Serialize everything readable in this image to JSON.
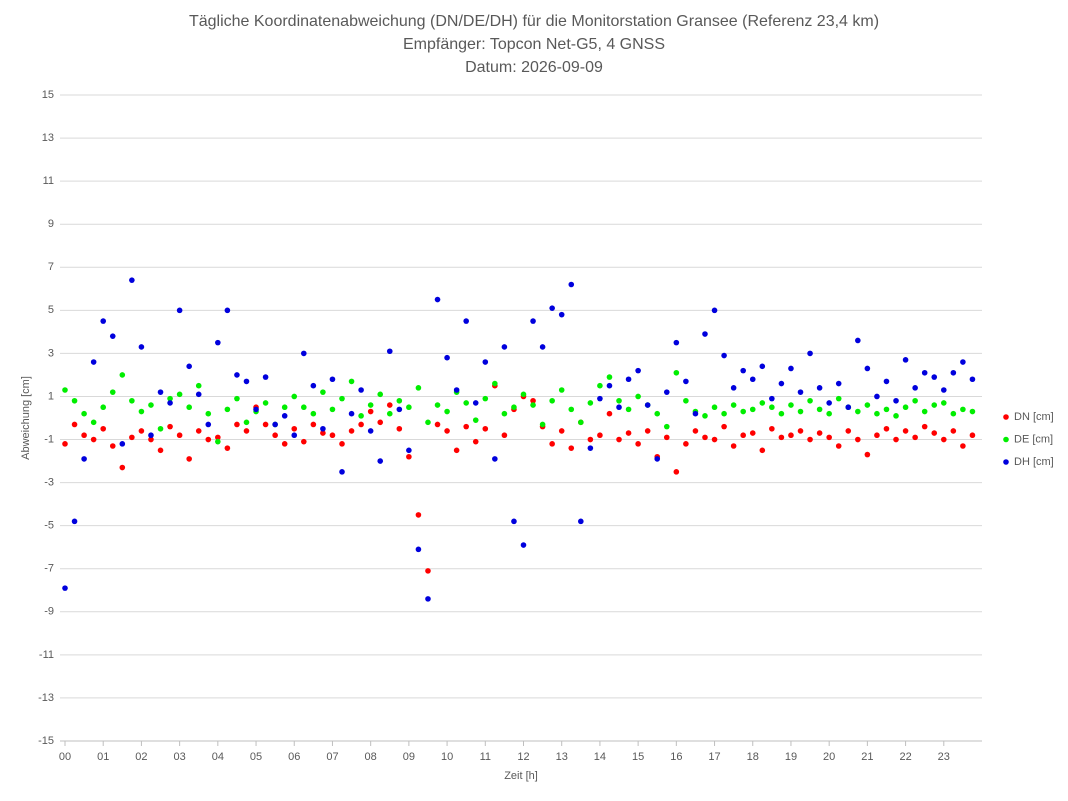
{
  "chart_data": {
    "type": "scatter",
    "title": "Tägliche Koordinatenabweichung (DN/DE/DH) für die Monitorstation Gransee (Referenz 23,4 km)",
    "subtitle": "Empfänger: Topcon Net-G5, 4 GNSS",
    "date": "Datum: 2026-09-09",
    "xlabel": "Zeit [h]",
    "ylabel": "Abweichung [cm]",
    "xlim": [
      0,
      24
    ],
    "ylim": [
      -15,
      15
    ],
    "yticks": [
      -15,
      -13,
      -11,
      -9,
      -7,
      -5,
      -3,
      -1,
      1,
      3,
      5,
      7,
      9,
      11,
      13,
      15
    ],
    "xticks": [
      {
        "value": 0,
        "label": "00"
      },
      {
        "value": 1,
        "label": "01"
      },
      {
        "value": 2,
        "label": "02"
      },
      {
        "value": 3,
        "label": "03"
      },
      {
        "value": 4,
        "label": "04"
      },
      {
        "value": 5,
        "label": "05"
      },
      {
        "value": 6,
        "label": "06"
      },
      {
        "value": 7,
        "label": "07"
      },
      {
        "value": 8,
        "label": "08"
      },
      {
        "value": 9,
        "label": "09"
      },
      {
        "value": 10,
        "label": "10"
      },
      {
        "value": 11,
        "label": "11"
      },
      {
        "value": 12,
        "label": "12"
      },
      {
        "value": 13,
        "label": "13"
      },
      {
        "value": 14,
        "label": "14"
      },
      {
        "value": 15,
        "label": "15"
      },
      {
        "value": 16,
        "label": "16"
      },
      {
        "value": 17,
        "label": "17"
      },
      {
        "value": 18,
        "label": "18"
      },
      {
        "value": 19,
        "label": "19"
      },
      {
        "value": 20,
        "label": "20"
      },
      {
        "value": 21,
        "label": "21"
      },
      {
        "value": 22,
        "label": "22"
      },
      {
        "value": 23,
        "label": "23"
      }
    ],
    "grid": true,
    "legend": "right",
    "x": [
      0,
      0.25,
      0.5,
      0.75,
      1,
      1.25,
      1.5,
      1.75,
      2,
      2.25,
      2.5,
      2.75,
      3,
      3.25,
      3.5,
      3.75,
      4,
      4.25,
      4.5,
      4.75,
      5,
      5.25,
      5.5,
      5.75,
      6,
      6.25,
      6.5,
      6.75,
      7,
      7.25,
      7.5,
      7.75,
      8,
      8.25,
      8.5,
      8.75,
      9,
      9.25,
      9.5,
      9.75,
      10,
      10.25,
      10.5,
      10.75,
      11,
      11.25,
      11.5,
      11.75,
      12,
      12.25,
      12.5,
      12.75,
      13,
      13.25,
      13.5,
      13.75,
      14,
      14.25,
      14.5,
      14.75,
      15,
      15.25,
      15.5,
      15.75,
      16,
      16.25,
      16.5,
      16.75,
      17,
      17.25,
      17.5,
      17.75,
      18,
      18.25,
      18.5,
      18.75,
      19,
      19.25,
      19.5,
      19.75,
      20,
      20.25,
      20.5,
      20.75,
      21,
      21.25,
      21.5,
      21.75,
      22,
      22.25,
      22.5,
      22.75,
      23,
      23.25,
      23.5,
      23.75
    ],
    "series": [
      {
        "name": "DN [cm]",
        "color": "#ff0000",
        "values": [
          -1.2,
          -0.3,
          -0.8,
          -1,
          -0.5,
          -1.3,
          -2.3,
          -0.9,
          -0.6,
          -1,
          -1.5,
          -0.4,
          -0.8,
          -1.9,
          -0.6,
          -1,
          -0.9,
          -1.4,
          -0.3,
          -0.6,
          0.5,
          -0.3,
          -0.8,
          -1.2,
          -0.5,
          -1.1,
          -0.3,
          -0.7,
          -0.8,
          -1.2,
          -0.6,
          -0.3,
          0.3,
          -0.2,
          0.6,
          -0.5,
          -1.8,
          -4.5,
          -7.1,
          -0.3,
          -0.6,
          -1.5,
          -0.4,
          -1.1,
          -0.5,
          1.5,
          -0.8,
          0.4,
          1,
          0.8,
          -0.4,
          -1.2,
          -0.6,
          -1.4,
          -0.2,
          -1,
          -0.8,
          0.2,
          -1,
          -0.7,
          -1.2,
          -0.6,
          -1.8,
          -0.9,
          -2.5,
          -1.2,
          -0.6,
          -0.9,
          -1,
          -0.4,
          -1.3,
          -0.8,
          -0.7,
          -1.5,
          -0.5,
          -0.9,
          -0.8,
          -0.6,
          -1,
          -0.7,
          -0.9,
          -1.3,
          -0.6,
          -1,
          -1.7,
          -0.8,
          -0.5,
          -1,
          -0.6,
          -0.9,
          -0.4,
          -0.7,
          -1,
          -0.6,
          -1.3,
          -0.8
        ]
      },
      {
        "name": "DE [cm]",
        "color": "#00ee00",
        "values": [
          1.3,
          0.8,
          0.2,
          -0.2,
          0.5,
          1.2,
          2,
          0.8,
          0.3,
          0.6,
          -0.5,
          0.9,
          1.1,
          0.5,
          1.5,
          0.2,
          -1.1,
          0.4,
          0.9,
          -0.2,
          0.3,
          0.7,
          -0.3,
          0.5,
          1,
          0.5,
          0.2,
          1.2,
          0.4,
          0.9,
          1.7,
          0.1,
          0.6,
          1.1,
          0.2,
          0.8,
          0.5,
          1.4,
          -0.2,
          0.6,
          0.3,
          1.2,
          0.7,
          -0.1,
          0.9,
          1.6,
          0.2,
          0.5,
          1.1,
          0.6,
          -0.3,
          0.8,
          1.3,
          0.4,
          -0.2,
          0.7,
          1.5,
          1.9,
          0.8,
          0.4,
          1,
          0.6,
          0.2,
          -0.4,
          2.1,
          0.8,
          0.3,
          0.1,
          0.5,
          0.2,
          0.6,
          0.3,
          0.4,
          0.7,
          0.5,
          0.2,
          0.6,
          0.3,
          0.8,
          0.4,
          0.2,
          0.9,
          0.5,
          0.3,
          0.6,
          0.2,
          0.4,
          0.1,
          0.5,
          0.8,
          0.3,
          0.6,
          0.7,
          0.2,
          0.4,
          0.3
        ]
      },
      {
        "name": "DH [cm]",
        "color": "#0000dd",
        "values": [
          -7.9,
          -4.8,
          -1.9,
          2.6,
          4.5,
          3.8,
          -1.2,
          6.4,
          3.3,
          -0.8,
          1.2,
          0.7,
          5,
          2.4,
          1.1,
          -0.3,
          3.5,
          5,
          2,
          1.7,
          0.4,
          1.9,
          -0.3,
          0.1,
          -0.8,
          3,
          1.5,
          -0.5,
          1.8,
          -2.5,
          0.2,
          1.3,
          -0.6,
          -2,
          3.1,
          0.4,
          -1.5,
          -6.1,
          -8.4,
          5.5,
          2.8,
          1.3,
          4.5,
          0.7,
          2.6,
          -1.9,
          3.3,
          -4.8,
          -5.9,
          4.5,
          3.3,
          5.1,
          4.8,
          6.2,
          -4.8,
          -1.4,
          0.9,
          1.5,
          0.5,
          1.8,
          2.2,
          0.6,
          -1.9,
          1.2,
          3.5,
          1.7,
          0.2,
          3.9,
          5,
          2.9,
          1.4,
          2.2,
          1.8,
          2.4,
          0.9,
          1.6,
          2.3,
          1.2,
          3,
          1.4,
          0.7,
          1.6,
          0.5,
          3.6,
          2.3,
          1,
          1.7,
          0.8,
          2.7,
          1.4,
          2.1,
          1.9,
          1.3,
          2.1,
          2.6,
          1.8
        ]
      }
    ]
  }
}
